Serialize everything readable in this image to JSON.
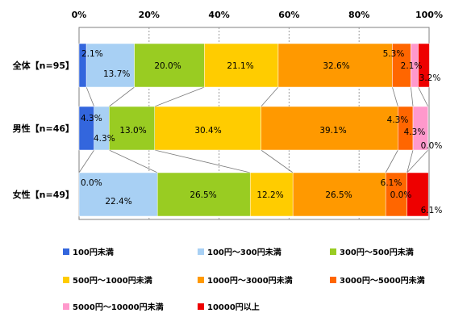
{
  "chart_data": {
    "type": "bar",
    "orientation": "horizontal",
    "stacked": "percent",
    "categories": [
      "全体【n=95】",
      "男性【n=46】",
      "女性【n=49】"
    ],
    "xlim": [
      0,
      100
    ],
    "x_ticks": [
      "0%",
      "20%",
      "40%",
      "60%",
      "80%",
      "100%"
    ],
    "grid": true,
    "legend_position": "bottom",
    "series": [
      {
        "name": "100円未満",
        "color": "#3366dd",
        "values": [
          2.1,
          4.3,
          0.0
        ]
      },
      {
        "name": "100円～300円未満",
        "color": "#a8d0f4",
        "values": [
          13.7,
          4.3,
          22.4
        ]
      },
      {
        "name": "300円～500円未満",
        "color": "#99cc22",
        "values": [
          20.0,
          13.0,
          26.5
        ]
      },
      {
        "name": "500円～1000円未満",
        "color": "#ffcc00",
        "values": [
          21.1,
          30.4,
          12.2
        ]
      },
      {
        "name": "1000円～3000円未満",
        "color": "#ff9900",
        "values": [
          32.6,
          39.1,
          26.5
        ]
      },
      {
        "name": "3000円～5000円未満",
        "color": "#ff6600",
        "values": [
          5.3,
          4.3,
          6.1
        ]
      },
      {
        "name": "5000円～10000円未満",
        "color": "#ff99cc",
        "values": [
          2.1,
          4.3,
          0.0
        ]
      },
      {
        "name": "10000円以上",
        "color": "#ee0000",
        "values": [
          3.2,
          0.0,
          6.1
        ]
      }
    ],
    "data_labels": [
      [
        "2.1%",
        "13.7%",
        "20.0%",
        "21.1%",
        "32.6%",
        "5.3%",
        "2.1%",
        "3.2%"
      ],
      [
        "4.3%",
        "4.3%",
        "13.0%",
        "30.4%",
        "39.1%",
        "4.3%",
        "4.3%",
        "0.0%"
      ],
      [
        "0.0%",
        "22.4%",
        "26.5%",
        "12.2%",
        "26.5%",
        "6.1%",
        "0.0%",
        "6.1%"
      ]
    ]
  }
}
